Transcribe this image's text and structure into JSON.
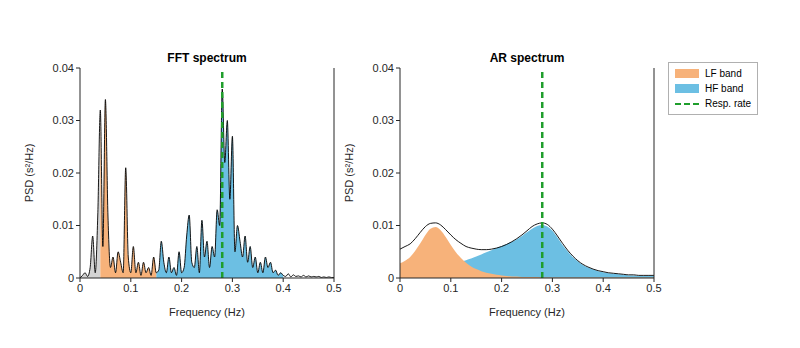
{
  "chart_data": [
    {
      "type": "area",
      "title": "FFT spectrum",
      "x_label": "Frequency (Hz)",
      "y_label": "PSD (s²/Hz)",
      "color": "#000000",
      "legend": false,
      "grid": false,
      "xlim": [
        0,
        0.5
      ],
      "xticks": [
        0,
        0.1,
        0.2,
        0.3,
        0.4,
        0.5
      ],
      "ylim": [
        0,
        0.04
      ],
      "yticks": [
        0,
        0.01,
        0.02,
        0.03,
        0.04
      ],
      "x": [
        0,
        0.005,
        0.01,
        0.015,
        0.02,
        0.025,
        0.03,
        0.035,
        0.04,
        0.045,
        0.05,
        0.055,
        0.06,
        0.065,
        0.07,
        0.075,
        0.08,
        0.085,
        0.09,
        0.095,
        0.1,
        0.105,
        0.11,
        0.115,
        0.12,
        0.125,
        0.13,
        0.135,
        0.14,
        0.145,
        0.15,
        0.155,
        0.16,
        0.165,
        0.17,
        0.175,
        0.18,
        0.185,
        0.19,
        0.195,
        0.2,
        0.205,
        0.21,
        0.215,
        0.22,
        0.225,
        0.23,
        0.235,
        0.24,
        0.245,
        0.25,
        0.255,
        0.26,
        0.265,
        0.27,
        0.275,
        0.28,
        0.285,
        0.29,
        0.295,
        0.3,
        0.305,
        0.31,
        0.315,
        0.32,
        0.325,
        0.33,
        0.335,
        0.34,
        0.345,
        0.35,
        0.355,
        0.36,
        0.365,
        0.37,
        0.375,
        0.38,
        0.385,
        0.39,
        0.395,
        0.4,
        0.405,
        0.41,
        0.415,
        0.42,
        0.425,
        0.43,
        0.435,
        0.44,
        0.445,
        0.45,
        0.455,
        0.46,
        0.465,
        0.47,
        0.475,
        0.48,
        0.485,
        0.49,
        0.495,
        0.5
      ],
      "values": [
        0,
        0.0005,
        0.001,
        0.0003,
        0.002,
        0.008,
        0.001,
        0.012,
        0.032,
        0.006,
        0.034,
        0.012,
        0.002,
        0.004,
        0.001,
        0.005,
        0.003,
        0.001,
        0.021,
        0.004,
        0.001,
        0.006,
        0.001,
        0.003,
        0.0005,
        0.003,
        0.001,
        0.002,
        0.0005,
        0.004,
        0.001,
        0.0015,
        0.007,
        0.003,
        0.001,
        0.004,
        0.001,
        0.002,
        0.0005,
        0.005,
        0.001,
        0.002,
        0.008,
        0.012,
        0.003,
        0.002,
        0.006,
        0.001,
        0.011,
        0.004,
        0.007,
        0.002,
        0.006,
        0.004,
        0.013,
        0.01,
        0.036,
        0.022,
        0.03,
        0.015,
        0.027,
        0.005,
        0.01,
        0.007,
        0.004,
        0.008,
        0.003,
        0.006,
        0.002,
        0.004,
        0.001,
        0.003,
        0.001,
        0.004,
        0.002,
        0.003,
        0.001,
        0.0015,
        0.0005,
        0.001,
        0.0005,
        0.0003,
        0.0008,
        0.0002,
        0.0006,
        0.0003,
        0.0004,
        0.0002,
        0.0005,
        0.0002,
        0.0004,
        0.0002,
        0.0003,
        0.0002,
        0.0003,
        0.0001,
        0.0002,
        0.0001,
        0.0002,
        0.0001,
        0.0001
      ],
      "series": [
        {
          "name": "LF band",
          "color": "#f7b27a",
          "range": [
            0.04,
            0.15
          ]
        },
        {
          "name": "HF band",
          "color": "#6cbfe3",
          "range": [
            0.15,
            0.4
          ]
        }
      ],
      "unlabeled_fill": {
        "color": "#d3d3d3",
        "range": [
          0,
          0.04
        ]
      },
      "resp_rate": {
        "name": "Resp. rate",
        "value": 0.28,
        "color": "#1f9e2c",
        "line_style": "dashed"
      }
    },
    {
      "type": "area",
      "title": "AR spectrum",
      "x_label": "Frequency (Hz)",
      "y_label": "PSD (s²/Hz)",
      "color": "#000000",
      "legend": "right",
      "grid": false,
      "xlim": [
        0,
        0.5
      ],
      "xticks": [
        0,
        0.1,
        0.2,
        0.3,
        0.4,
        0.5
      ],
      "ylim": [
        0,
        0.04
      ],
      "yticks": [
        0,
        0.01,
        0.02,
        0.03,
        0.04
      ],
      "x": [
        0,
        0.01,
        0.02,
        0.03,
        0.04,
        0.05,
        0.06,
        0.07,
        0.08,
        0.09,
        0.1,
        0.11,
        0.12,
        0.13,
        0.14,
        0.15,
        0.16,
        0.17,
        0.18,
        0.19,
        0.2,
        0.21,
        0.22,
        0.23,
        0.24,
        0.25,
        0.26,
        0.27,
        0.28,
        0.29,
        0.3,
        0.31,
        0.32,
        0.33,
        0.34,
        0.35,
        0.36,
        0.37,
        0.38,
        0.39,
        0.4,
        0.41,
        0.42,
        0.43,
        0.44,
        0.45,
        0.46,
        0.47,
        0.48,
        0.49,
        0.5
      ],
      "values": [
        0.0055,
        0.006,
        0.0065,
        0.0075,
        0.0087,
        0.0098,
        0.0104,
        0.0105,
        0.0101,
        0.0092,
        0.0082,
        0.0073,
        0.0066,
        0.006,
        0.0057,
        0.0055,
        0.0054,
        0.0054,
        0.0055,
        0.0057,
        0.006,
        0.0064,
        0.0069,
        0.0075,
        0.0082,
        0.009,
        0.0098,
        0.0103,
        0.0105,
        0.0102,
        0.0093,
        0.008,
        0.0066,
        0.0053,
        0.0042,
        0.0033,
        0.0026,
        0.0021,
        0.0017,
        0.0014,
        0.0012,
        0.001,
        0.0009,
        0.0008,
        0.0007,
        0.0006,
        0.0006,
        0.0005,
        0.0005,
        0.0005,
        0.0005
      ],
      "series": [
        {
          "name": "LF band",
          "color": "#f7b27a",
          "values": [
            0.0028,
            0.0033,
            0.004,
            0.0052,
            0.0066,
            0.0082,
            0.0094,
            0.0097,
            0.0091,
            0.0078,
            0.0063,
            0.0049,
            0.0038,
            0.0029,
            0.0022,
            0.0017,
            0.0013,
            0.001,
            0.0008,
            0.0006,
            0.0005,
            0.0004,
            0.0003,
            0.0003,
            0.0002,
            0.0002,
            0.0002,
            0.0002,
            0.0001,
            0.0001,
            0.0001,
            0.0001,
            0.0001,
            0.0001,
            0.0001,
            0.0001,
            0.0001,
            0.0001,
            0.0001,
            0.0001,
            0.0001,
            0.0001,
            0.0001,
            0.0001,
            0.0001,
            0.0001,
            0.0001,
            0.0001,
            0.0001,
            0.0001,
            0.0001
          ]
        },
        {
          "name": "HF band",
          "color": "#6cbfe3",
          "values": [
            0.001,
            0.0011,
            0.0012,
            0.0013,
            0.0014,
            0.0016,
            0.0017,
            0.0019,
            0.0021,
            0.0023,
            0.0025,
            0.0028,
            0.0031,
            0.0034,
            0.0037,
            0.0041,
            0.0045,
            0.0049,
            0.0053,
            0.0057,
            0.0061,
            0.0065,
            0.0069,
            0.0074,
            0.008,
            0.0087,
            0.0094,
            0.0099,
            0.0101,
            0.0098,
            0.009,
            0.0077,
            0.0063,
            0.0051,
            0.004,
            0.0032,
            0.0025,
            0.002,
            0.0016,
            0.0013,
            0.0011,
            0.0009,
            0.0008,
            0.0007,
            0.0006,
            0.0005,
            0.0005,
            0.0004,
            0.0004,
            0.0004,
            0.0004
          ]
        }
      ],
      "resp_rate": {
        "name": "Resp. rate",
        "value": 0.28,
        "color": "#1f9e2c",
        "line_style": "dashed"
      }
    }
  ]
}
